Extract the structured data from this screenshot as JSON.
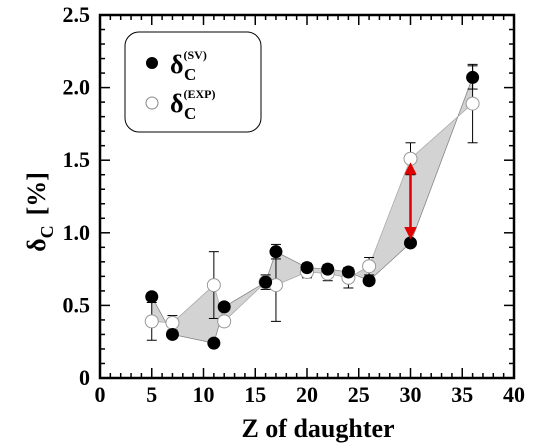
{
  "chart_data": {
    "type": "scatter",
    "xlabel": "Z of daughter",
    "ylabel": {
      "symbol": "δ",
      "subscript": "C",
      "unit": "[%]"
    },
    "xlim": [
      0,
      40
    ],
    "ylim": [
      0,
      2.5
    ],
    "x_ticks": [
      "0",
      "5",
      "10",
      "15",
      "20",
      "25",
      "30",
      "35",
      "40"
    ],
    "y_ticks": [
      "0",
      "0.5",
      "1.0",
      "1.5",
      "2.0",
      "2.5"
    ],
    "grid": false,
    "legend": {
      "placement": "top-left",
      "entries": [
        {
          "symbol": "δ",
          "subscript": "C",
          "superscript": "(SV)",
          "marker": "filled-circle"
        },
        {
          "symbol": "δ",
          "subscript": "C",
          "superscript": "(EXP)",
          "marker": "open-circle"
        }
      ]
    },
    "series": [
      {
        "marker": "filled-circle",
        "color": "#000000",
        "x": [
          5,
          7,
          11,
          12,
          16,
          17,
          20,
          22,
          24,
          26,
          30,
          36
        ],
        "y": [
          0.56,
          0.3,
          0.24,
          0.49,
          0.66,
          0.87,
          0.76,
          0.75,
          0.73,
          0.67,
          0.93,
          2.07
        ],
        "error": [
          0.0,
          0.0,
          0.0,
          0.0,
          0.05,
          0.05,
          0.03,
          0.03,
          0.03,
          0.0,
          0.0,
          0.08
        ]
      },
      {
        "marker": "open-circle",
        "color": "#ffffff",
        "x": [
          5,
          7,
          11,
          12,
          16,
          17,
          20,
          22,
          24,
          26,
          30,
          36
        ],
        "y": [
          0.39,
          0.38,
          0.64,
          0.39,
          0.66,
          0.64,
          0.73,
          0.72,
          0.69,
          0.77,
          1.51,
          1.89
        ],
        "error": [
          0.13,
          0.05,
          0.23,
          0.03,
          0.0,
          0.25,
          0.04,
          0.05,
          0.07,
          0.06,
          0.11,
          0.27
        ]
      }
    ],
    "band_color": "#d3d3d3",
    "annotation": {
      "type": "double-arrow",
      "x": 30,
      "y_from": 0.93,
      "y_to": 1.51,
      "color": "#e00000"
    }
  }
}
